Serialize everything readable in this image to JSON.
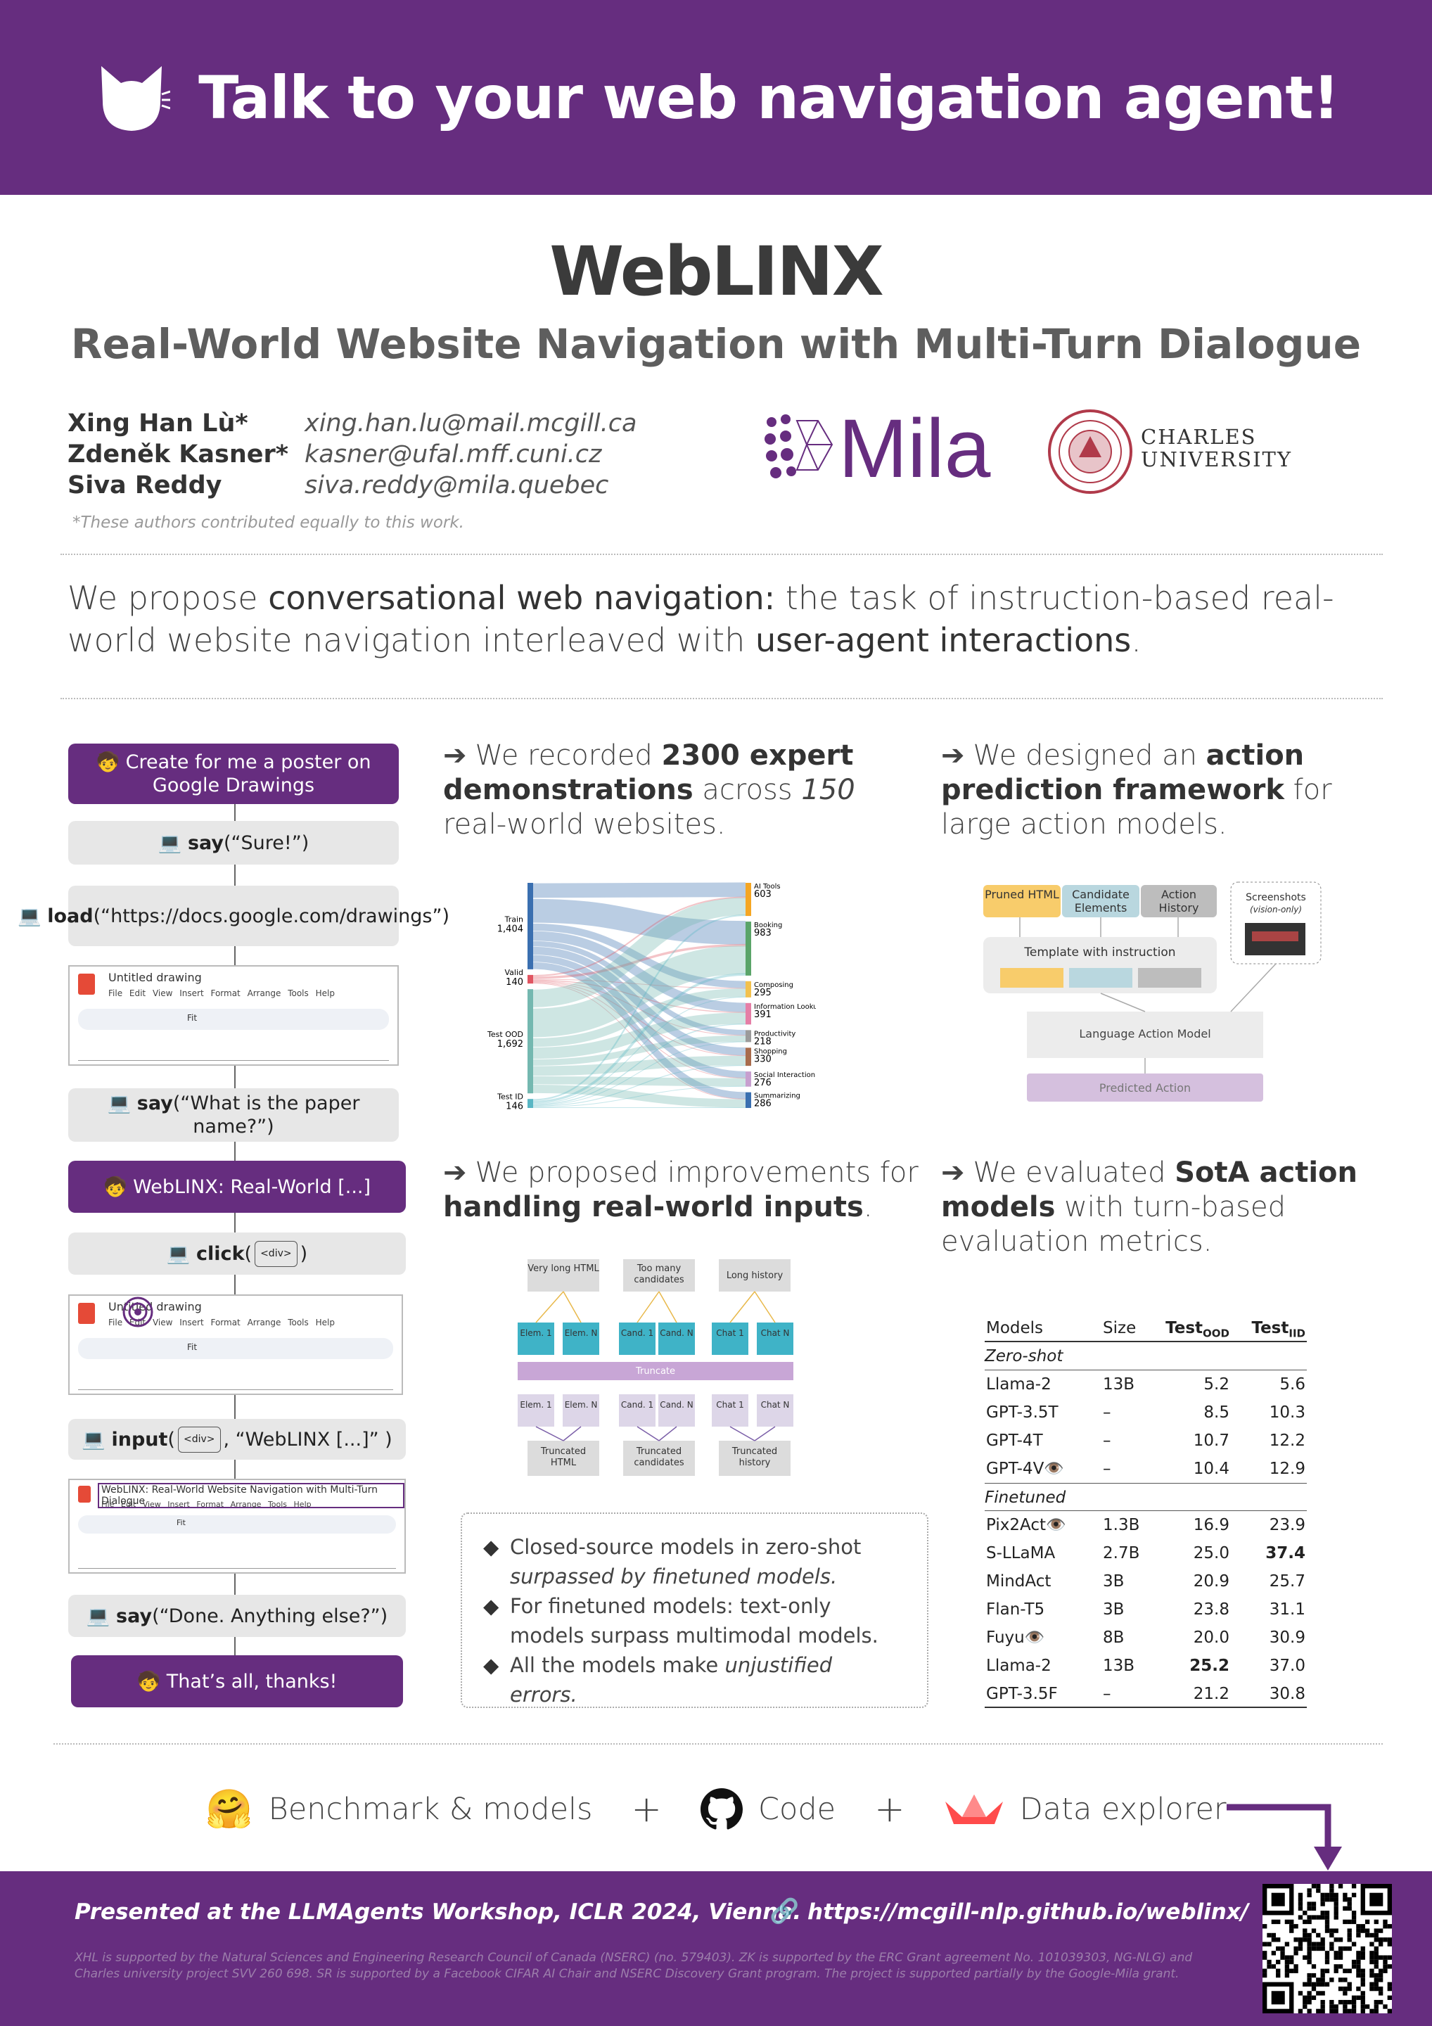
{
  "banner": {
    "title": "Talk to your web navigation agent!"
  },
  "hero": {
    "title": "WebLINX",
    "subtitle": "Real-World Website Navigation with Multi-Turn Dialogue"
  },
  "authors": [
    {
      "name": "Xing Han Lù*",
      "email": "xing.han.lu@mail.mcgill.ca"
    },
    {
      "name": "Zdeněk Kasner*",
      "email": "kasner@ufal.mff.cuni.cz"
    },
    {
      "name": "Siva Reddy",
      "email": "siva.reddy@mila.quebec"
    }
  ],
  "footnote": "*These authors contributed equally to this work.",
  "logos": {
    "mila": "Mila",
    "charles_line1": "CHARLES",
    "charles_line2": "UNIVERSITY"
  },
  "intro": {
    "p1": "We propose ",
    "b1": "conversational web navigation:",
    "p2": " the task of instruction-based real-world website navigation interleaved with ",
    "b2": "user-agent interactions",
    "p3": "."
  },
  "dialogue": {
    "turn1": "🧒 Create for me a poster on Google Drawings",
    "say1_fn": "say",
    "say1_arg": "(“Sure!”)",
    "load_fn": "load",
    "load_arg": "(“https://docs.google.com/drawings”)",
    "shot_title": "Untitled drawing",
    "shot_menu": "File Edit View Insert Format Arrange Tools Help",
    "say2_fn": "say",
    "say2_arg": "(“What is the paper name?”)",
    "turn2": "🧒 WebLINX: Real-World [...]",
    "click_fn": "click",
    "click_tag": "<div>",
    "input_fn": "input",
    "input_tag": "<div>",
    "input_arg": ", “WebLINX [...]” )",
    "shot3_title": "WebLINX: Real-World Website Navigation with Multi-Turn Dialogue",
    "say3_fn": "say",
    "say3_arg": "(“Done. Anything else?”)",
    "turn3": "🧒 That’s all, thanks!",
    "toolbar_fit": "Fit"
  },
  "sections": {
    "s1": {
      "p1": "We recorded ",
      "b1": "2300 expert demonstrations",
      "p2": " across ",
      "i1": "150",
      "p3": " real-world websites."
    },
    "s2": {
      "p1": "We designed an ",
      "b1": "action prediction framework",
      "p2": " for large action models."
    },
    "s3": {
      "p1": "We proposed improvements for ",
      "b1": "handling real-world inputs",
      "p2": "."
    },
    "s4": {
      "p1": "We evaluated ",
      "b1": "SotA action models",
      "p2": " with turn-based evaluation metrics."
    }
  },
  "sankey": {
    "left": [
      {
        "name": "Train",
        "value": "1,404"
      },
      {
        "name": "Valid",
        "value": "140"
      },
      {
        "name": "Test OOD",
        "value": "1,692"
      },
      {
        "name": "Test ID",
        "value": "146"
      }
    ],
    "right": [
      {
        "name": "AI Tools",
        "value": "603"
      },
      {
        "name": "Booking",
        "value": "983"
      },
      {
        "name": "Composing",
        "value": "295"
      },
      {
        "name": "Information Lookup",
        "value": "391"
      },
      {
        "name": "Productivity",
        "value": "218"
      },
      {
        "name": "Shopping",
        "value": "330"
      },
      {
        "name": "Social Interaction",
        "value": "276"
      },
      {
        "name": "Summarizing",
        "value": "286"
      }
    ],
    "colors": {
      "train": "#3a6fb0",
      "valid": "#e05561",
      "ood": "#74b8b0",
      "id": "#58b6c4"
    }
  },
  "framework": {
    "pruned": "Pruned HTML",
    "candidate": "Candidate Elements",
    "history": "Action History",
    "screens": "Screenshots",
    "screens_note": "(vision-only)",
    "template": "Template with instruction",
    "lam": "Language Action Model",
    "predicted": "Predicted Action"
  },
  "truncate": {
    "long_html": "Very long HTML",
    "many_cand": "Too many candidates",
    "long_hist": "Long history",
    "elem1": "Elem. 1",
    "elemN": "Elem. N",
    "cand1": "Cand. 1",
    "candN": "Cand. N",
    "chat1": "Chat 1",
    "chatN": "Chat N",
    "truncate": "Truncate",
    "t_html": "Truncated HTML",
    "t_cand": "Truncated candidates",
    "t_hist": "Truncated history"
  },
  "findings": [
    {
      "t1": "Closed-source models in zero-shot ",
      "i1": "surpassed by finetuned models."
    },
    {
      "t1": "For finetuned models: text-only models surpass multimodal models.",
      "i1": ""
    },
    {
      "t1": "All the models make ",
      "i1": "unjustified errors."
    }
  ],
  "table": {
    "headers": {
      "models": "Models",
      "size": "Size",
      "ood": "Test",
      "ood_sub": "OOD",
      "iid": "Test",
      "iid_sub": "IID"
    },
    "zero_shot_label": "Zero-shot",
    "finetuned_label": "Finetuned",
    "zero_shot": [
      {
        "model": "Llama-2",
        "size": "13B",
        "ood": "5.2",
        "iid": "5.6"
      },
      {
        "model": "GPT-3.5T",
        "size": "–",
        "ood": "8.5",
        "iid": "10.3"
      },
      {
        "model": "GPT-4T",
        "size": "–",
        "ood": "10.7",
        "iid": "12.2"
      },
      {
        "model": "GPT-4V👁️",
        "size": "–",
        "ood": "10.4",
        "iid": "12.9"
      }
    ],
    "finetuned": [
      {
        "model": "Pix2Act👁️",
        "size": "1.3B",
        "ood": "16.9",
        "iid": "23.9"
      },
      {
        "model": "S-LLaMA",
        "size": "2.7B",
        "ood": "25.0",
        "iid": "37.4"
      },
      {
        "model": "MindAct",
        "size": "3B",
        "ood": "20.9",
        "iid": "25.7"
      },
      {
        "model": "Flan-T5",
        "size": "3B",
        "ood": "23.8",
        "iid": "31.1"
      },
      {
        "model": "Fuyu👁️",
        "size": "8B",
        "ood": "20.0",
        "iid": "30.9"
      },
      {
        "model": "Llama-2",
        "size": "13B",
        "ood": "25.2",
        "iid": "37.0"
      },
      {
        "model": "GPT-3.5F",
        "size": "–",
        "ood": "21.2",
        "iid": "30.8"
      }
    ]
  },
  "links": {
    "benchmark": "Benchmark & models",
    "code": "Code",
    "explorer": "Data explorer",
    "plus": "+"
  },
  "footer": {
    "presented": "Presented at the LLMAgents Workshop, ICLR 2024, Vienna.",
    "url": "https://mcgill-nlp.github.io/weblinx/",
    "funding": "XHL is supported by the Natural Sciences and Engineering Research Council of Canada (NSERC) (no. 579403). ZK is supported by the ERC Grant agreement No. 101039303, NG-NLG) and Charles university project SVV 260 698. SR is supported by a Facebook CIFAR AI Chair and NSERC Discovery Grant program. The project is supported partially by the Google-Mila grant."
  },
  "colors": {
    "brand": "#662d7f",
    "user_bubble": "#662d7f",
    "agent_bubble": "#e7e7e7"
  }
}
